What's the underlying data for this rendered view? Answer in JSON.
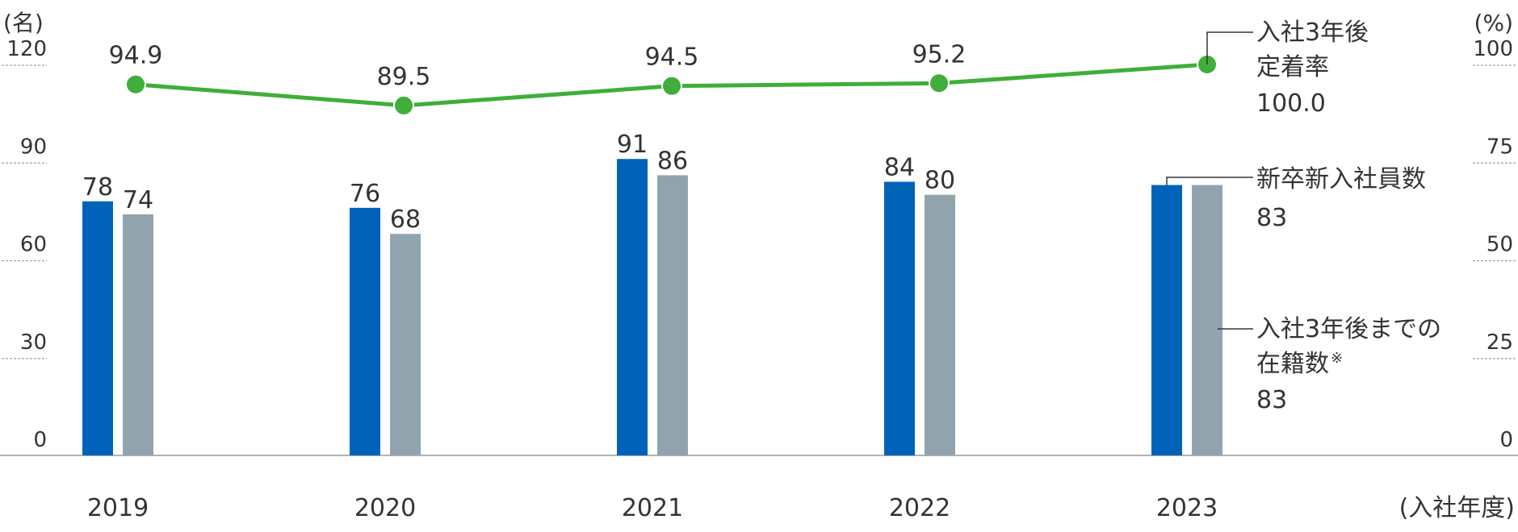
{
  "chart_data": {
    "type": "bar",
    "categories": [
      "2019",
      "2020",
      "2021",
      "2022",
      "2023"
    ],
    "left_axis": {
      "unit": "(名)",
      "ticks": [
        "120",
        "90",
        "60",
        "30",
        "0"
      ],
      "ylim": [
        0,
        120
      ]
    },
    "right_axis": {
      "unit": "(%)",
      "ticks": [
        "100",
        "75",
        "50",
        "25",
        "0"
      ],
      "ylim": [
        0,
        100
      ]
    },
    "xlabel": "(入社年度)",
    "series": [
      {
        "name": "新卒新入社員数",
        "type": "bar",
        "axis": "left",
        "color": "#0063b9",
        "values": [
          78,
          76,
          91,
          84,
          83
        ]
      },
      {
        "name": "入社3年後までの在籍数※",
        "type": "bar",
        "axis": "left",
        "color": "#91a4ae",
        "values": [
          74,
          68,
          86,
          80,
          83
        ]
      },
      {
        "name": "入社3年後定着率",
        "type": "line",
        "axis": "right",
        "color": "#3fae3a",
        "values": [
          94.9,
          89.5,
          94.5,
          95.2,
          100.0
        ]
      }
    ],
    "value_labels": {
      "bars_new": [
        "78",
        "76",
        "91",
        "84"
      ],
      "bars_retained": [
        "74",
        "68",
        "86",
        "80"
      ],
      "rate": [
        "94.9",
        "89.5",
        "94.5",
        "95.2"
      ]
    },
    "callouts": {
      "rate_name_lines": [
        "入社3年後",
        "定着率"
      ],
      "rate_value": "100.0",
      "new_name": "新卒新入社員数",
      "new_value": "83",
      "retained_name_lines": [
        "入社3年後までの",
        "在籍数"
      ],
      "retained_mark": "※",
      "retained_value": "83"
    },
    "grid": false,
    "legend": "callouts-right"
  }
}
